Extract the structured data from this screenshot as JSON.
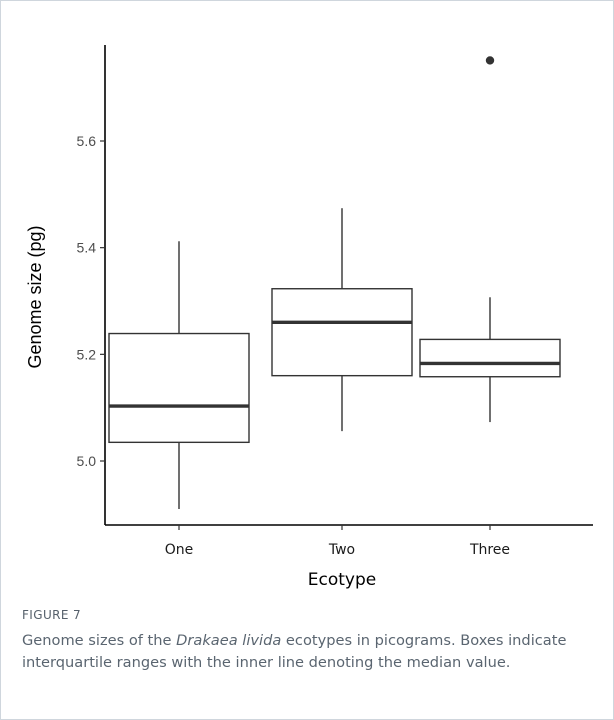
{
  "figure": {
    "label": "FIGURE 7",
    "caption": {
      "before": "Genome sizes of the ",
      "species": "Drakaea livida",
      "after": " ecotypes in picograms. Boxes indicate interquartile ranges with the inner line denoting the median value."
    }
  },
  "chart_data": {
    "type": "box",
    "title": "",
    "xlabel": "Ecotype",
    "ylabel": "Genome size (pg)",
    "categories": [
      "One",
      "Two",
      "Three"
    ],
    "ylim": [
      4.88,
      5.78
    ],
    "yticks": [
      5.0,
      5.2,
      5.4,
      5.6
    ],
    "ytick_labels": [
      "5.0",
      "5.2",
      "5.4",
      "5.6"
    ],
    "grid": false,
    "legend": "none",
    "boxes": [
      {
        "category": "One",
        "whisker_low": 4.91,
        "q1": 5.035,
        "median": 5.103,
        "q3": 5.239,
        "whisker_high": 5.412,
        "outliers": []
      },
      {
        "category": "Two",
        "whisker_low": 5.056,
        "q1": 5.16,
        "median": 5.26,
        "q3": 5.323,
        "whisker_high": 5.474,
        "outliers": []
      },
      {
        "category": "Three",
        "whisker_low": 5.073,
        "q1": 5.158,
        "median": 5.183,
        "q3": 5.228,
        "whisker_high": 5.307,
        "outliers": [
          5.751
        ]
      }
    ],
    "colors": {
      "box_stroke": "#333333",
      "box_fill": "#ffffff",
      "axis": "#000000"
    }
  }
}
